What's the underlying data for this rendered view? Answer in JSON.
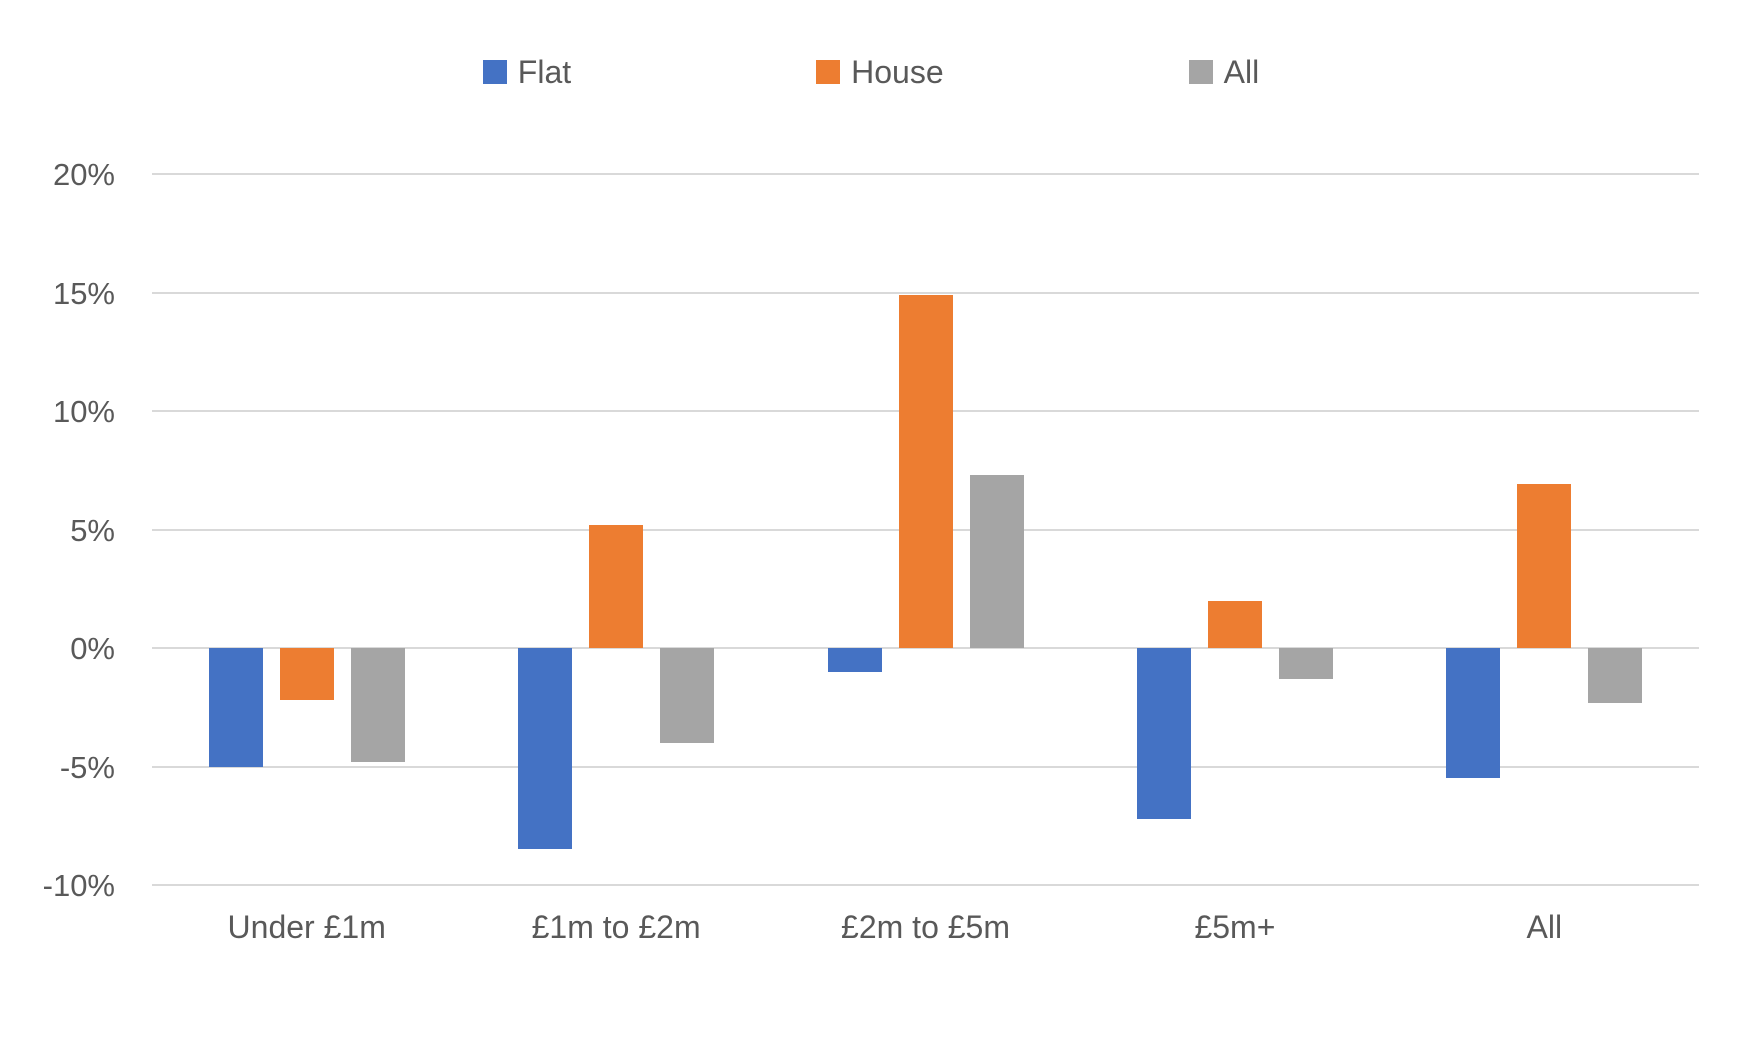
{
  "chart_data": {
    "type": "bar",
    "title": "",
    "categories": [
      "Under £1m",
      "£1m to £2m",
      "£2m to £5m",
      "£5m+",
      "All"
    ],
    "series": [
      {
        "name": "Flat",
        "color": "#4472C4",
        "values": [
          -5.0,
          -8.5,
          -1.0,
          -7.2,
          -5.5
        ]
      },
      {
        "name": "House",
        "color": "#ED7D31",
        "values": [
          -2.2,
          5.2,
          14.9,
          2.0,
          6.9
        ]
      },
      {
        "name": "All",
        "color": "#A5A5A5",
        "values": [
          -4.8,
          -4.0,
          7.3,
          -1.3,
          -2.3
        ]
      }
    ],
    "y_axis": {
      "min": -10,
      "max": 20,
      "step": 5,
      "tick_labels": [
        "20%",
        "15%",
        "10%",
        "5%",
        "0%",
        "-5%",
        "-10%"
      ]
    },
    "legend_position": "top",
    "grid": true,
    "colors": {
      "gridline": "#d9d9d9",
      "axis_text": "#595959",
      "background": "#ffffff"
    }
  }
}
